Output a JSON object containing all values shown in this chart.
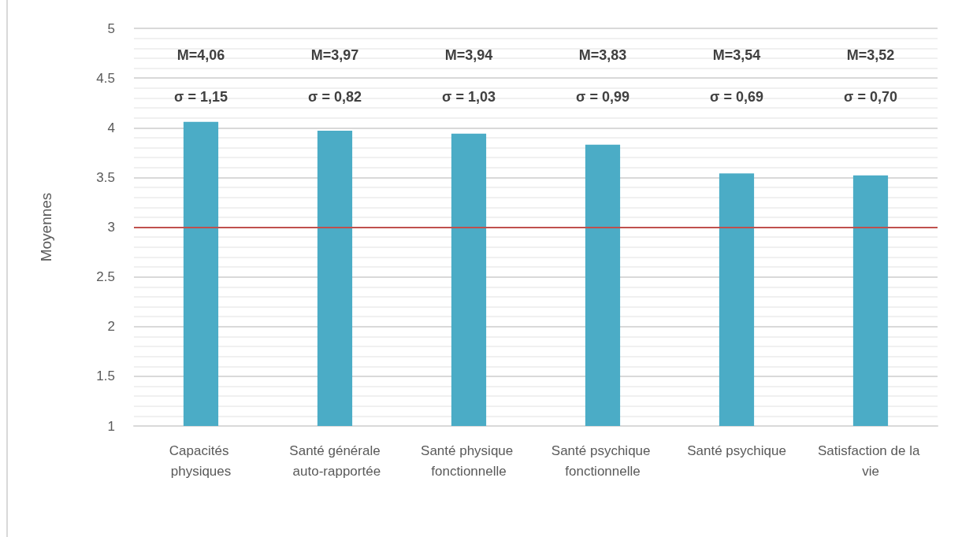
{
  "chart_data": {
    "type": "bar",
    "ylabel": "Moyennes",
    "categories": [
      "Capacités physiques",
      "Santé générale auto-rapportée",
      "Santé physique fonctionnelle",
      "Santé psychique fonctionnelle",
      "Santé psychique",
      "Satisfaction de la vie"
    ],
    "values": [
      4.06,
      3.97,
      3.94,
      3.83,
      3.54,
      3.52
    ],
    "color": "#4bacc6",
    "annotations": [
      "M=4,06",
      "M=3,97",
      "M=3,94",
      "M=3,83",
      "M=3,54",
      "M=3,52",
      "σ = 1,15",
      "σ = 0,82",
      "σ = 1,03",
      "σ = 0,99",
      "σ = 0,69",
      "σ = 0,70"
    ],
    "ylim": [
      1,
      5
    ],
    "yticks": [
      1,
      1.5,
      2,
      2.5,
      3,
      3.5,
      4,
      4.5,
      5
    ],
    "grid": "y",
    "ref_lines": [
      {
        "axis": "y",
        "value": 3,
        "color": "#c0504d"
      }
    ]
  }
}
